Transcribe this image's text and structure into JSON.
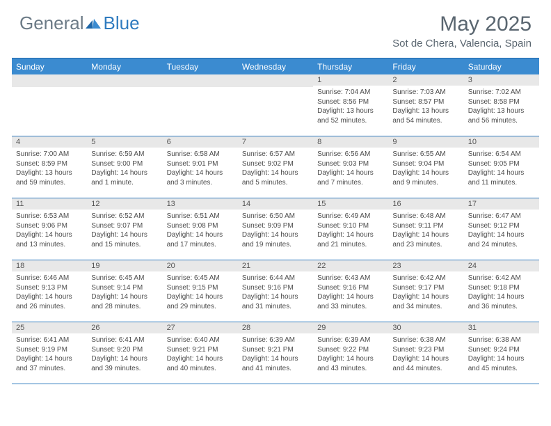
{
  "logo": {
    "general": "General",
    "blue": "Blue"
  },
  "title": "May 2025",
  "location": "Sot de Chera, Valencia, Spain",
  "day_names": [
    "Sunday",
    "Monday",
    "Tuesday",
    "Wednesday",
    "Thursday",
    "Friday",
    "Saturday"
  ],
  "colors": {
    "header_bg": "#3b8bd0",
    "border": "#2f7bbf",
    "daynum_bg": "#e8e8e8",
    "text": "#4a4a4a",
    "title_text": "#5a6670"
  },
  "weeks": [
    [
      null,
      null,
      null,
      null,
      {
        "n": "1",
        "sunrise": "7:04 AM",
        "sunset": "8:56 PM",
        "daylight": "13 hours and 52 minutes."
      },
      {
        "n": "2",
        "sunrise": "7:03 AM",
        "sunset": "8:57 PM",
        "daylight": "13 hours and 54 minutes."
      },
      {
        "n": "3",
        "sunrise": "7:02 AM",
        "sunset": "8:58 PM",
        "daylight": "13 hours and 56 minutes."
      }
    ],
    [
      {
        "n": "4",
        "sunrise": "7:00 AM",
        "sunset": "8:59 PM",
        "daylight": "13 hours and 59 minutes."
      },
      {
        "n": "5",
        "sunrise": "6:59 AM",
        "sunset": "9:00 PM",
        "daylight": "14 hours and 1 minute."
      },
      {
        "n": "6",
        "sunrise": "6:58 AM",
        "sunset": "9:01 PM",
        "daylight": "14 hours and 3 minutes."
      },
      {
        "n": "7",
        "sunrise": "6:57 AM",
        "sunset": "9:02 PM",
        "daylight": "14 hours and 5 minutes."
      },
      {
        "n": "8",
        "sunrise": "6:56 AM",
        "sunset": "9:03 PM",
        "daylight": "14 hours and 7 minutes."
      },
      {
        "n": "9",
        "sunrise": "6:55 AM",
        "sunset": "9:04 PM",
        "daylight": "14 hours and 9 minutes."
      },
      {
        "n": "10",
        "sunrise": "6:54 AM",
        "sunset": "9:05 PM",
        "daylight": "14 hours and 11 minutes."
      }
    ],
    [
      {
        "n": "11",
        "sunrise": "6:53 AM",
        "sunset": "9:06 PM",
        "daylight": "14 hours and 13 minutes."
      },
      {
        "n": "12",
        "sunrise": "6:52 AM",
        "sunset": "9:07 PM",
        "daylight": "14 hours and 15 minutes."
      },
      {
        "n": "13",
        "sunrise": "6:51 AM",
        "sunset": "9:08 PM",
        "daylight": "14 hours and 17 minutes."
      },
      {
        "n": "14",
        "sunrise": "6:50 AM",
        "sunset": "9:09 PM",
        "daylight": "14 hours and 19 minutes."
      },
      {
        "n": "15",
        "sunrise": "6:49 AM",
        "sunset": "9:10 PM",
        "daylight": "14 hours and 21 minutes."
      },
      {
        "n": "16",
        "sunrise": "6:48 AM",
        "sunset": "9:11 PM",
        "daylight": "14 hours and 23 minutes."
      },
      {
        "n": "17",
        "sunrise": "6:47 AM",
        "sunset": "9:12 PM",
        "daylight": "14 hours and 24 minutes."
      }
    ],
    [
      {
        "n": "18",
        "sunrise": "6:46 AM",
        "sunset": "9:13 PM",
        "daylight": "14 hours and 26 minutes."
      },
      {
        "n": "19",
        "sunrise": "6:45 AM",
        "sunset": "9:14 PM",
        "daylight": "14 hours and 28 minutes."
      },
      {
        "n": "20",
        "sunrise": "6:45 AM",
        "sunset": "9:15 PM",
        "daylight": "14 hours and 29 minutes."
      },
      {
        "n": "21",
        "sunrise": "6:44 AM",
        "sunset": "9:16 PM",
        "daylight": "14 hours and 31 minutes."
      },
      {
        "n": "22",
        "sunrise": "6:43 AM",
        "sunset": "9:16 PM",
        "daylight": "14 hours and 33 minutes."
      },
      {
        "n": "23",
        "sunrise": "6:42 AM",
        "sunset": "9:17 PM",
        "daylight": "14 hours and 34 minutes."
      },
      {
        "n": "24",
        "sunrise": "6:42 AM",
        "sunset": "9:18 PM",
        "daylight": "14 hours and 36 minutes."
      }
    ],
    [
      {
        "n": "25",
        "sunrise": "6:41 AM",
        "sunset": "9:19 PM",
        "daylight": "14 hours and 37 minutes."
      },
      {
        "n": "26",
        "sunrise": "6:41 AM",
        "sunset": "9:20 PM",
        "daylight": "14 hours and 39 minutes."
      },
      {
        "n": "27",
        "sunrise": "6:40 AM",
        "sunset": "9:21 PM",
        "daylight": "14 hours and 40 minutes."
      },
      {
        "n": "28",
        "sunrise": "6:39 AM",
        "sunset": "9:21 PM",
        "daylight": "14 hours and 41 minutes."
      },
      {
        "n": "29",
        "sunrise": "6:39 AM",
        "sunset": "9:22 PM",
        "daylight": "14 hours and 43 minutes."
      },
      {
        "n": "30",
        "sunrise": "6:38 AM",
        "sunset": "9:23 PM",
        "daylight": "14 hours and 44 minutes."
      },
      {
        "n": "31",
        "sunrise": "6:38 AM",
        "sunset": "9:24 PM",
        "daylight": "14 hours and 45 minutes."
      }
    ]
  ],
  "labels": {
    "sunrise": "Sunrise: ",
    "sunset": "Sunset: ",
    "daylight": "Daylight: "
  }
}
